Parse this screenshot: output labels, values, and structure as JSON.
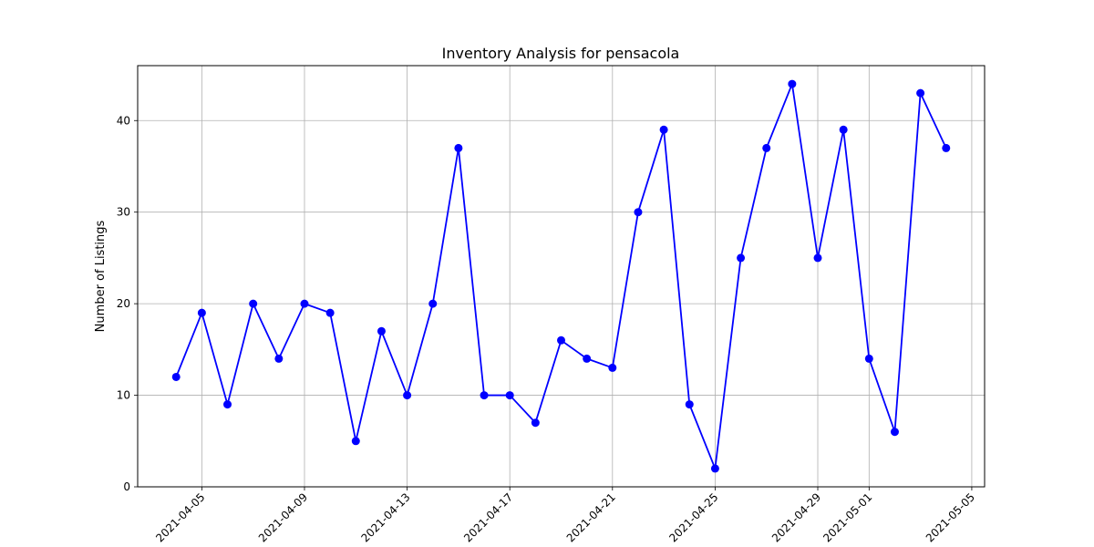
{
  "chart_data": {
    "type": "line",
    "title": "Inventory Analysis for pensacola",
    "xlabel": "",
    "ylabel": "Number of Listings",
    "x": [
      "2021-04-04",
      "2021-04-05",
      "2021-04-06",
      "2021-04-07",
      "2021-04-08",
      "2021-04-09",
      "2021-04-10",
      "2021-04-11",
      "2021-04-12",
      "2021-04-13",
      "2021-04-14",
      "2021-04-15",
      "2021-04-16",
      "2021-04-17",
      "2021-04-18",
      "2021-04-19",
      "2021-04-20",
      "2021-04-21",
      "2021-04-22",
      "2021-04-23",
      "2021-04-24",
      "2021-04-25",
      "2021-04-26",
      "2021-04-27",
      "2021-04-28",
      "2021-04-29",
      "2021-04-30",
      "2021-05-01",
      "2021-05-02",
      "2021-05-03",
      "2021-05-04"
    ],
    "series": [
      {
        "values": [
          12,
          19,
          9,
          20,
          14,
          20,
          19,
          5,
          17,
          10,
          20,
          37,
          10,
          10,
          7,
          16,
          14,
          13,
          30,
          39,
          9,
          2,
          25,
          37,
          44,
          25,
          39,
          14,
          6,
          43,
          37
        ]
      }
    ],
    "xticks": [
      "2021-04-05",
      "2021-04-09",
      "2021-04-13",
      "2021-04-17",
      "2021-04-21",
      "2021-04-25",
      "2021-04-29",
      "2021-05-01",
      "2021-05-05"
    ],
    "yticks": [
      0,
      10,
      20,
      30,
      40
    ],
    "xlim": [
      "2021-04-02.5",
      "2021-05-05.5"
    ],
    "ylim": [
      0,
      46
    ],
    "grid": true,
    "line_color": "#0000ff",
    "marker_color": "#0000ff",
    "marker": "circle"
  }
}
